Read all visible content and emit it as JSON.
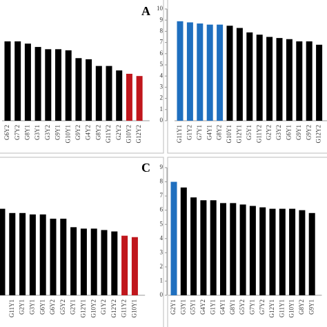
{
  "chart_data": [
    {
      "type": "bar",
      "label": "A",
      "ylim": [
        0,
        10
      ],
      "categories": [
        "G6Y2",
        "G7Y2",
        "G8Y1",
        "G3Y1",
        "G3Y2",
        "G9Y1",
        "G10Y1",
        "G9Y2",
        "G4Y2",
        "G8Y2",
        "G11Y2",
        "G2Y2",
        "G10Y2",
        "G12Y2"
      ],
      "values": [
        7.1,
        7.1,
        6.9,
        6.6,
        6.4,
        6.4,
        6.3,
        5.6,
        5.5,
        4.9,
        4.9,
        4.5,
        4.2,
        4.0
      ],
      "colors": [
        "#000",
        "#000",
        "#000",
        "#000",
        "#000",
        "#000",
        "#000",
        "#000",
        "#000",
        "#000",
        "#000",
        "#000",
        "#c0161c",
        "#c0161c"
      ]
    },
    {
      "type": "bar",
      "ylim": [
        0,
        10
      ],
      "yticks": [
        0,
        1,
        2,
        3,
        4,
        5,
        6,
        7,
        8,
        9,
        10
      ],
      "categories": [
        "G11Y1",
        "G1Y2",
        "G7Y1",
        "G4Y1",
        "G8Y2",
        "G10Y1",
        "G12Y1",
        "G5Y1",
        "G11Y2",
        "G2Y2",
        "G3Y2",
        "G6Y1",
        "G9Y1",
        "G9Y2",
        "G12Y2"
      ],
      "values": [
        8.9,
        8.8,
        8.7,
        8.6,
        8.6,
        8.5,
        8.3,
        7.9,
        7.7,
        7.5,
        7.4,
        7.3,
        7.1,
        7.1,
        6.8
      ],
      "colors": [
        "#1f6fbf",
        "#1f6fbf",
        "#1f6fbf",
        "#1f6fbf",
        "#1f6fbf",
        "#000",
        "#000",
        "#000",
        "#000",
        "#000",
        "#000",
        "#000",
        "#000",
        "#000",
        "#000"
      ]
    },
    {
      "type": "bar",
      "label": "C",
      "ylim": [
        0,
        9
      ],
      "categories": [
        null,
        "G11Y1",
        "G2Y1",
        "G3Y1",
        "G6Y1",
        "G6Y2",
        "G5Y2",
        "G2Y1",
        "G12Y1",
        "G10Y2",
        "G1Y2",
        "G12Y2",
        "G11Y2",
        "G10Y1"
      ],
      "values": [
        6.1,
        5.8,
        5.8,
        5.7,
        5.7,
        5.4,
        5.4,
        4.8,
        4.7,
        4.7,
        4.6,
        4.5,
        4.2,
        4.1
      ],
      "colors": [
        "#000",
        "#000",
        "#000",
        "#000",
        "#000",
        "#000",
        "#000",
        "#000",
        "#000",
        "#000",
        "#000",
        "#000",
        "#c0161c",
        "#c0161c"
      ]
    },
    {
      "type": "bar",
      "ylim": [
        0,
        9
      ],
      "yticks": [
        0,
        1,
        2,
        3,
        4,
        5,
        6,
        7,
        8,
        9
      ],
      "categories": [
        "G2Y1",
        "G3Y1",
        "G5Y1",
        "G4Y2",
        "G1Y1",
        "G4Y1",
        "G8Y1",
        "G5Y2",
        "G7Y1",
        "G7Y2",
        "G12Y1",
        "G11Y1",
        "G10Y1",
        "G8Y2",
        "G9Y1"
      ],
      "values": [
        8.0,
        7.6,
        6.9,
        6.7,
        6.7,
        6.5,
        6.5,
        6.4,
        6.3,
        6.2,
        6.1,
        6.1,
        6.1,
        6.0,
        5.8
      ],
      "colors": [
        "#1f6fbf",
        "#000",
        "#000",
        "#000",
        "#000",
        "#000",
        "#000",
        "#000",
        "#000",
        "#000",
        "#000",
        "#000",
        "#000",
        "#000",
        "#000"
      ]
    }
  ]
}
